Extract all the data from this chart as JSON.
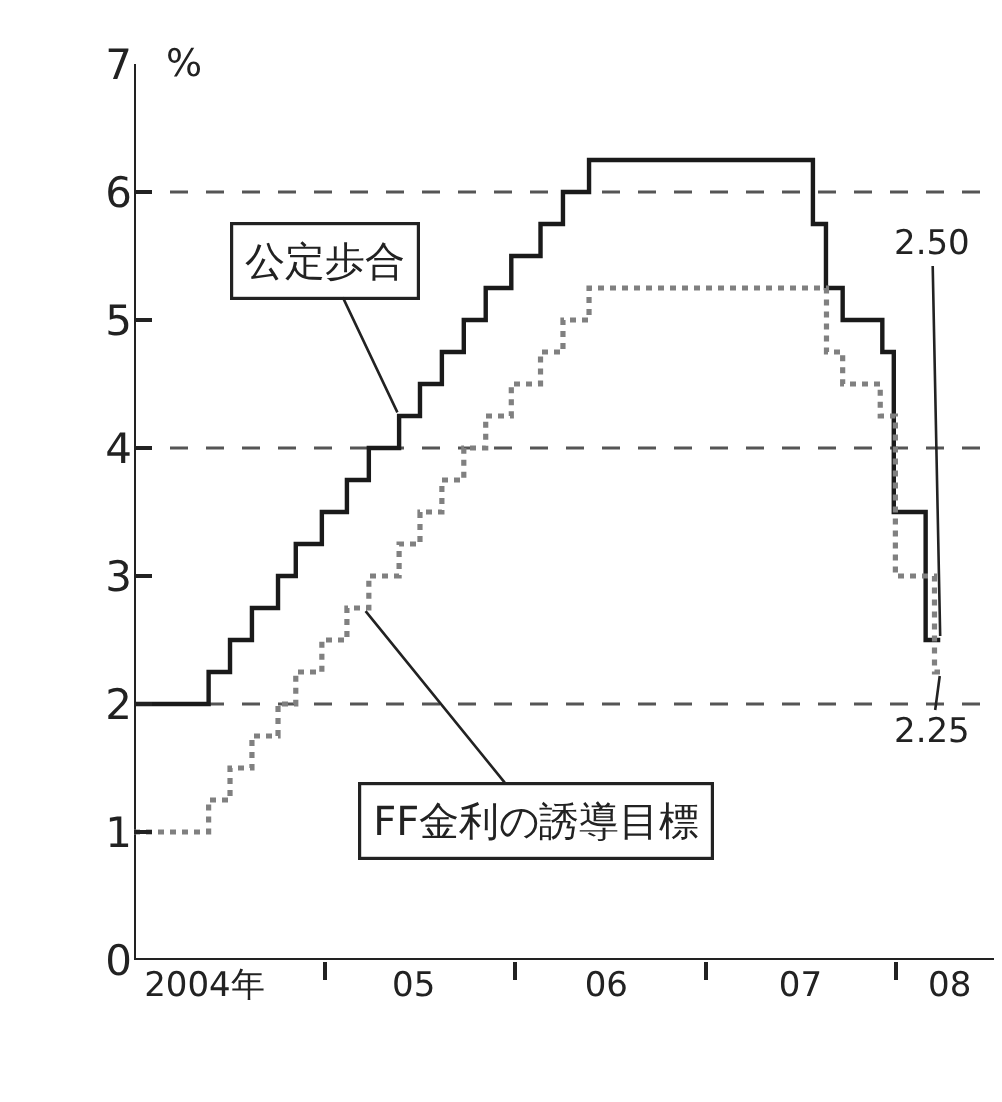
{
  "chart_data": {
    "type": "step",
    "ylabel": "%",
    "series": [
      {
        "color": "#1a1a1a",
        "line_style": "solid",
        "x": [
          "2004-01-01",
          "2004-05-23",
          "2004-07-03",
          "2004-08-14",
          "2004-10-03",
          "2004-11-06",
          "2004-12-26",
          "2005-02-12",
          "2005-03-26",
          "2005-05-23",
          "2005-07-02",
          "2005-08-13",
          "2005-09-24",
          "2005-11-05",
          "2005-12-24",
          "2006-02-18",
          "2006-04-02",
          "2006-05-22",
          "2007-07-25",
          "2007-08-19",
          "2007-09-20",
          "2007-12-05",
          "2007-12-27",
          "2008-02-26",
          "2008-03-25"
        ],
        "values": [
          2.0,
          2.25,
          2.5,
          2.75,
          3.0,
          3.25,
          3.5,
          3.75,
          4.0,
          4.25,
          4.5,
          4.75,
          5.0,
          5.25,
          5.5,
          5.75,
          6.0,
          6.25,
          5.75,
          5.25,
          5.0,
          4.75,
          3.5,
          2.5,
          2.5
        ]
      },
      {
        "color": "#808080",
        "line_style": "dotted",
        "x": [
          "2004-01-01",
          "2004-05-23",
          "2004-07-03",
          "2004-08-14",
          "2004-10-03",
          "2004-11-06",
          "2004-12-26",
          "2005-02-12",
          "2005-03-26",
          "2005-05-23",
          "2005-07-02",
          "2005-08-13",
          "2005-09-24",
          "2005-11-05",
          "2005-12-24",
          "2006-02-18",
          "2006-04-02",
          "2006-05-22",
          "2007-08-20",
          "2007-09-20",
          "2007-12-01",
          "2007-12-30",
          "2008-03-14",
          "2008-03-25"
        ],
        "values": [
          1.0,
          1.25,
          1.5,
          1.75,
          2.0,
          2.25,
          2.5,
          2.75,
          3.0,
          3.25,
          3.5,
          3.75,
          4.0,
          4.25,
          4.5,
          4.75,
          5.0,
          5.25,
          4.75,
          4.5,
          4.25,
          3.0,
          2.25,
          2.25
        ]
      }
    ],
    "xlim": [
      "2004-01-01",
      "2008-07-06"
    ],
    "xticks": [
      {
        "value": "2004-05-15",
        "label": "2004年"
      },
      {
        "value": "2005-01-01",
        "label": null
      },
      {
        "value": "2005-06-20",
        "label": "05"
      },
      {
        "value": "2006-01-01",
        "label": null
      },
      {
        "value": "2006-06-24",
        "label": "06"
      },
      {
        "value": "2007-01-01",
        "label": null
      },
      {
        "value": "2007-07-01",
        "label": "07"
      },
      {
        "value": "2008-01-01",
        "label": null
      },
      {
        "value": "2008-04-12",
        "label": "08"
      }
    ],
    "ylim": [
      0,
      7
    ],
    "yticks": [
      0,
      1,
      2,
      3,
      4,
      5,
      6,
      7
    ],
    "ref_lines": [
      {
        "axis": "y",
        "value": 2,
        "color": "#555555",
        "line_style": "dashed"
      },
      {
        "axis": "y",
        "value": 4,
        "color": "#555555",
        "line_style": "dashed"
      },
      {
        "axis": "y",
        "value": 6,
        "color": "#555555",
        "line_style": "dashed"
      }
    ],
    "annotations": [
      {
        "text": "公定歩合",
        "x": "2005-05-23",
        "y": 4.25
      },
      {
        "text": "FF金利の誘導目標",
        "x": "2005-03-15",
        "y": 2.75
      },
      {
        "text": "2.50",
        "x": "2008-03-25",
        "y": 2.5
      },
      {
        "text": "2.25",
        "x": "2008-03-25",
        "y": 2.25
      }
    ]
  }
}
